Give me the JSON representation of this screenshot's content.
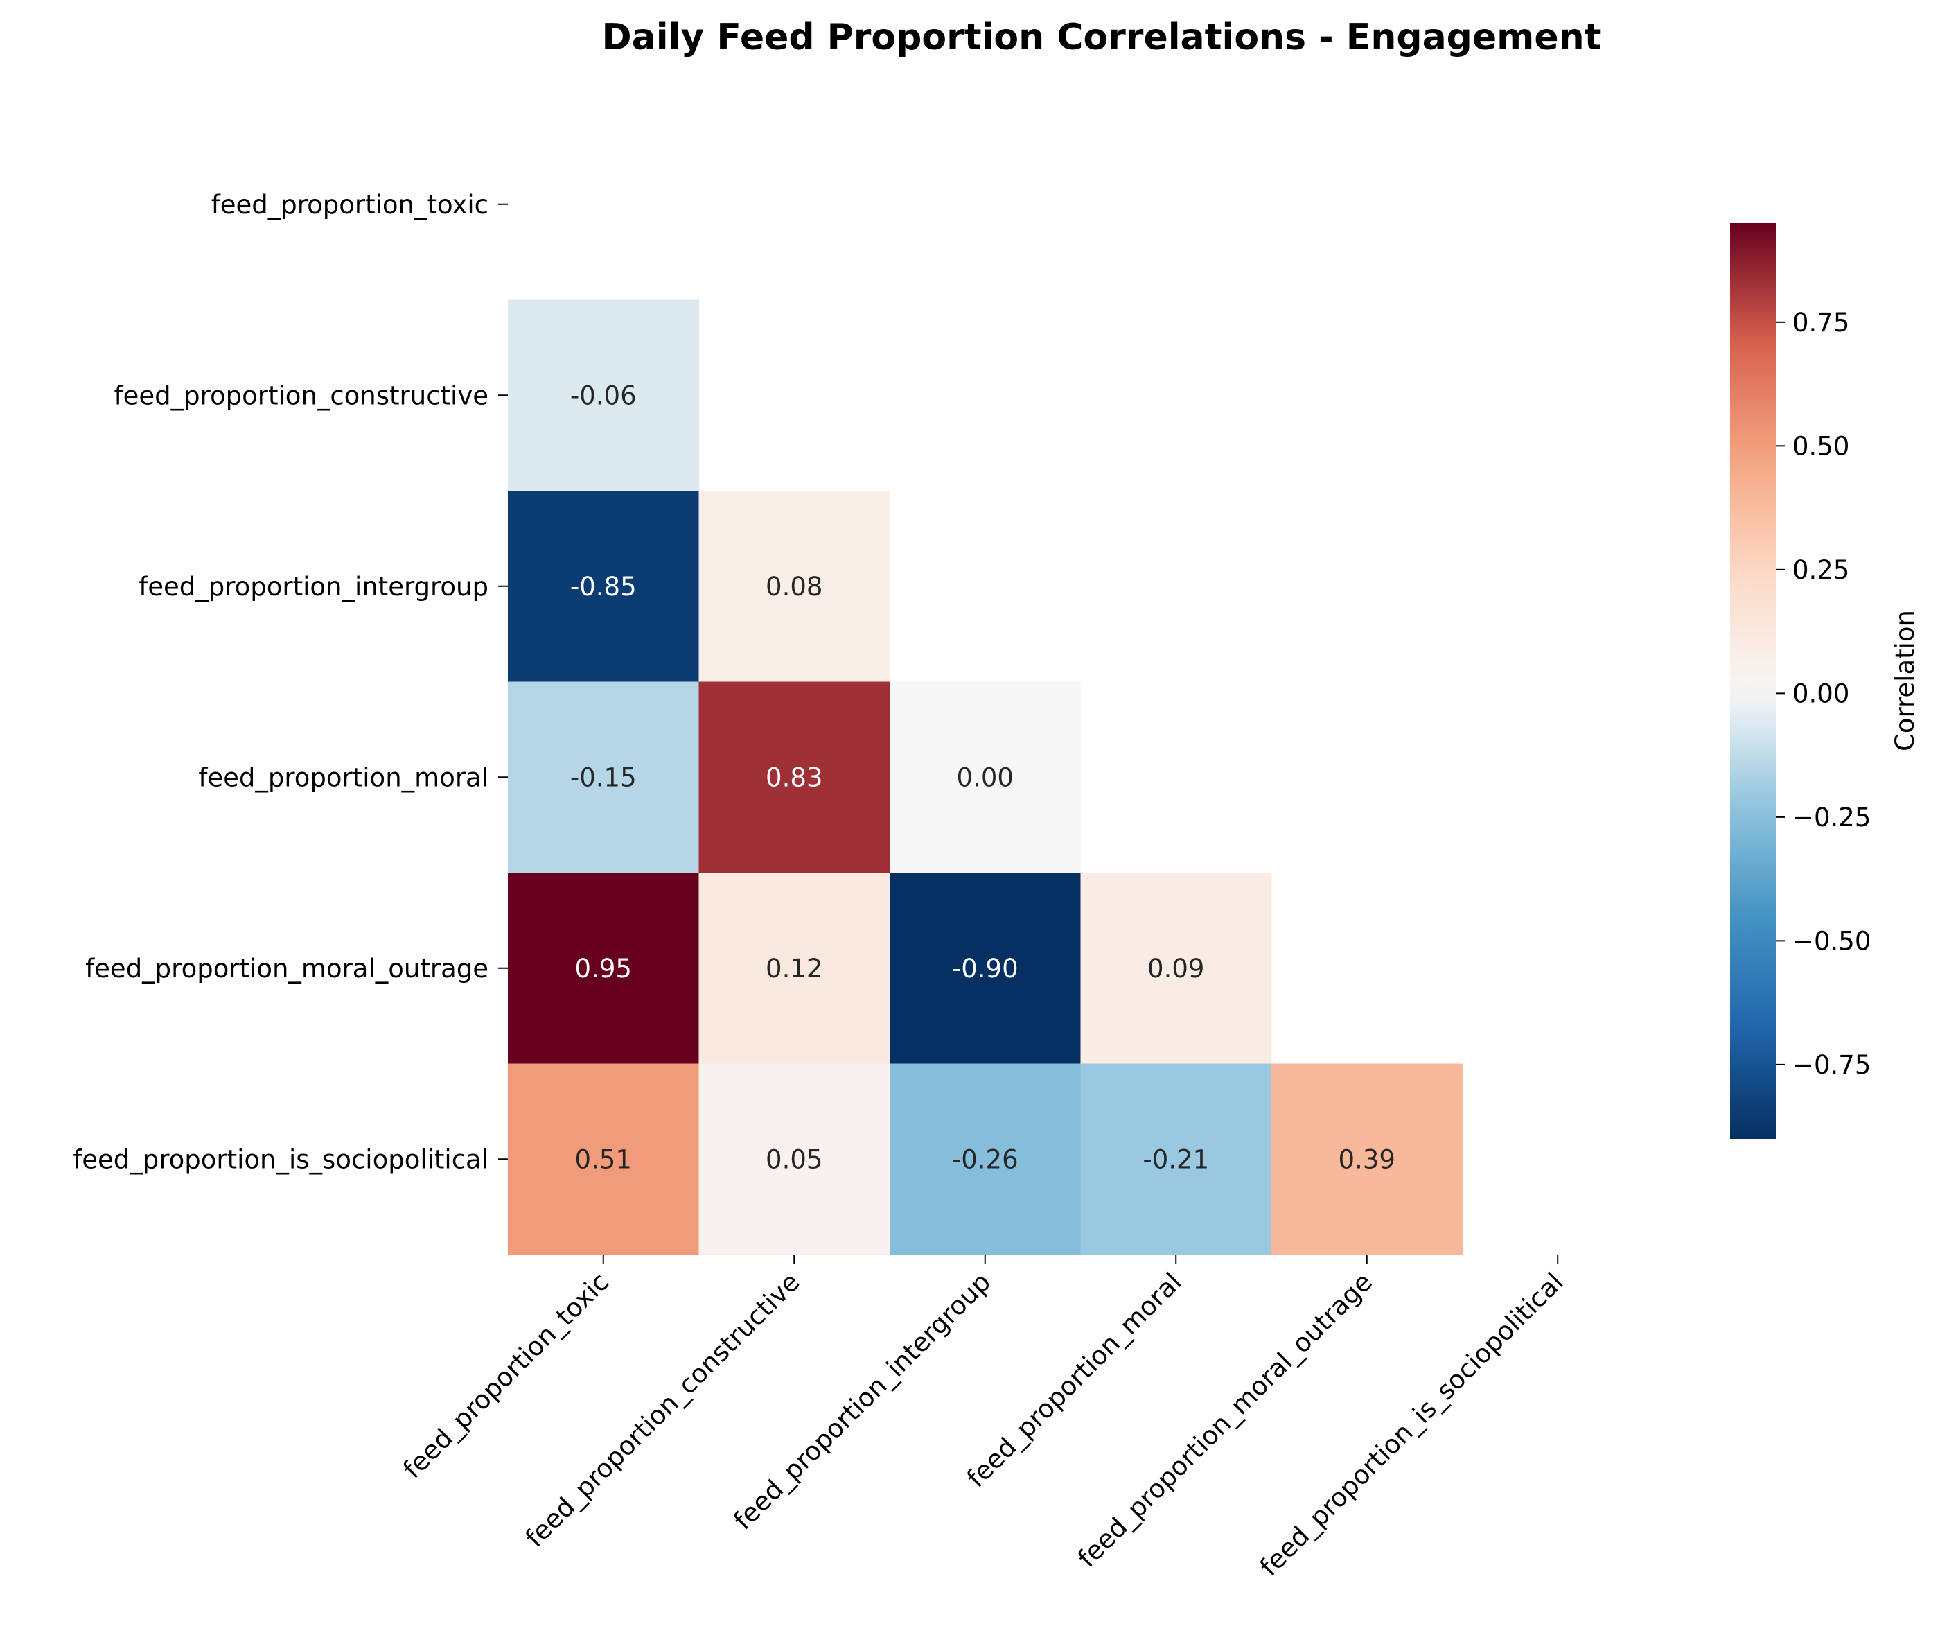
{
  "chart_data": {
    "type": "heatmap",
    "title": "Daily Feed Proportion Correlations - Engagement",
    "variables": [
      "feed_proportion_toxic",
      "feed_proportion_constructive",
      "feed_proportion_intergroup",
      "feed_proportion_moral",
      "feed_proportion_moral_outrage",
      "feed_proportion_is_sociopolitical"
    ],
    "mask": "upper-triangle-including-diagonal",
    "matrix": [
      [
        null,
        null,
        null,
        null,
        null,
        null
      ],
      [
        -0.06,
        null,
        null,
        null,
        null,
        null
      ],
      [
        -0.85,
        0.08,
        null,
        null,
        null,
        null
      ],
      [
        -0.15,
        0.83,
        0.0,
        null,
        null,
        null
      ],
      [
        0.95,
        0.12,
        -0.9,
        0.09,
        null,
        null
      ],
      [
        0.51,
        0.05,
        -0.26,
        -0.21,
        0.39,
        null
      ]
    ],
    "value_format": "2 decimals",
    "colormap": "RdBu_r",
    "color_range": [
      -0.9,
      0.95
    ],
    "colorbar": {
      "label": "Correlation",
      "ticks": [
        -0.75,
        -0.5,
        -0.25,
        0.0,
        0.25,
        0.5,
        0.75
      ],
      "tick_labels": [
        "−0.75",
        "−0.50",
        "−0.25",
        "0.00",
        "0.25",
        "0.50",
        "0.75"
      ],
      "placement": "right"
    }
  }
}
